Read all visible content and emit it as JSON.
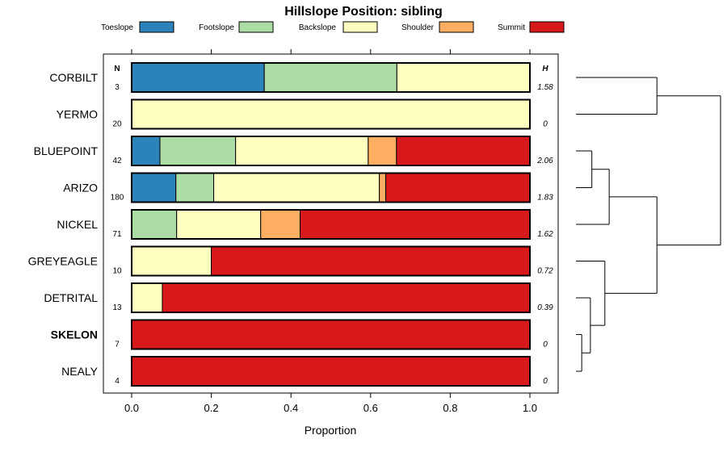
{
  "chart_data": {
    "type": "bar",
    "orientation": "horizontal",
    "stacked": true,
    "title": "Hillslope Position: sibling",
    "xlabel": "Proportion",
    "ylabel": "",
    "xlim": [
      0,
      1
    ],
    "x_ticks": [
      "0.0",
      "0.2",
      "0.4",
      "0.6",
      "0.8",
      "1.0"
    ],
    "legend_position": "top",
    "n_header": "N",
    "h_header": "H",
    "series": [
      {
        "name": "Toeslope",
        "color": "#2b83ba"
      },
      {
        "name": "Footslope",
        "color": "#abdda4"
      },
      {
        "name": "Backslope",
        "color": "#ffffbf"
      },
      {
        "name": "Shoulder",
        "color": "#fdae61"
      },
      {
        "name": "Summit",
        "color": "#d7191c"
      }
    ],
    "categories": [
      {
        "name": "CORBILT",
        "bold": false,
        "n": "3",
        "h": "1.58",
        "values": [
          0.333,
          0.333,
          0.334,
          0,
          0
        ]
      },
      {
        "name": "YERMO",
        "bold": false,
        "n": "20",
        "h": "0",
        "values": [
          0,
          0,
          1.0,
          0,
          0
        ]
      },
      {
        "name": "BLUEPOINT",
        "bold": false,
        "n": "42",
        "h": "2.06",
        "values": [
          0.071,
          0.19,
          0.333,
          0.071,
          0.335
        ]
      },
      {
        "name": "ARIZO",
        "bold": false,
        "n": "180",
        "h": "1.83",
        "values": [
          0.111,
          0.095,
          0.416,
          0.016,
          0.362
        ]
      },
      {
        "name": "NICKEL",
        "bold": false,
        "n": "71",
        "h": "1.62",
        "values": [
          0,
          0.113,
          0.211,
          0.099,
          0.577
        ]
      },
      {
        "name": "GREYEAGLE",
        "bold": false,
        "n": "10",
        "h": "0.72",
        "values": [
          0,
          0,
          0.2,
          0,
          0.8
        ]
      },
      {
        "name": "DETRITAL",
        "bold": false,
        "n": "13",
        "h": "0.39",
        "values": [
          0,
          0,
          0.077,
          0,
          0.923
        ]
      },
      {
        "name": "SKELON",
        "bold": true,
        "n": "7",
        "h": "0",
        "values": [
          0,
          0,
          0,
          0,
          1.0
        ]
      },
      {
        "name": "NEALY",
        "bold": false,
        "n": "4",
        "h": "0",
        "values": [
          0,
          0,
          0,
          0,
          1.0
        ]
      }
    ],
    "dendrogram": {
      "merges": [
        {
          "a": "SKELON",
          "b": "NEALY",
          "height": 0.04
        },
        {
          "a": "DETRITAL",
          "b": "m1",
          "height": 0.1
        },
        {
          "a": "GREYEAGLE",
          "b": "m2",
          "height": 0.2
        },
        {
          "a": "BLUEPOINT",
          "b": "ARIZO",
          "height": 0.11
        },
        {
          "a": "m4",
          "b": "NICKEL",
          "height": 0.23
        },
        {
          "a": "m5",
          "b": "m3",
          "height": 0.56
        },
        {
          "a": "CORBILT",
          "b": "YERMO",
          "height": 0.56
        },
        {
          "a": "m7",
          "b": "m6",
          "height": 1.0
        }
      ]
    }
  }
}
